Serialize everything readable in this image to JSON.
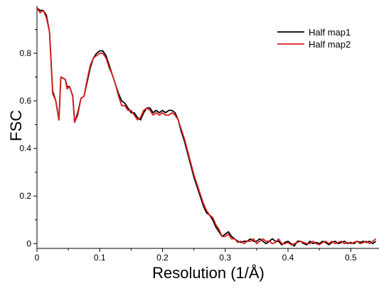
{
  "chart_data": {
    "type": "line",
    "xlabel": "Resolution (1/Å)",
    "ylabel": "FSC",
    "xlim": [
      0,
      0.545
    ],
    "ylim": [
      -0.02,
      1.0
    ],
    "x_ticks": [
      0,
      0.1,
      0.2,
      0.3,
      0.4,
      0.5
    ],
    "x_tick_labels": [
      "0",
      "0.1",
      "0.2",
      "0.3",
      "0.4",
      "0.5"
    ],
    "y_ticks": [
      0,
      0.2,
      0.4,
      0.6,
      0.8
    ],
    "y_tick_labels": [
      "0",
      "0.2",
      "0.4",
      "0.6",
      "0.8"
    ],
    "grid": false,
    "legend_position": "top-right",
    "series": [
      {
        "name": "Half map1",
        "color": "#000000",
        "points": [
          [
            0,
            0.99
          ],
          [
            0.005,
            0.98
          ],
          [
            0.01,
            0.98
          ],
          [
            0.015,
            0.96
          ],
          [
            0.02,
            0.89
          ],
          [
            0.025,
            0.64
          ],
          [
            0.03,
            0.6
          ],
          [
            0.035,
            0.52
          ],
          [
            0.038,
            0.7
          ],
          [
            0.045,
            0.69
          ],
          [
            0.048,
            0.66
          ],
          [
            0.052,
            0.66
          ],
          [
            0.057,
            0.62
          ],
          [
            0.06,
            0.51
          ],
          [
            0.065,
            0.55
          ],
          [
            0.07,
            0.61
          ],
          [
            0.075,
            0.62
          ],
          [
            0.08,
            0.68
          ],
          [
            0.085,
            0.74
          ],
          [
            0.09,
            0.78
          ],
          [
            0.095,
            0.8
          ],
          [
            0.1,
            0.81
          ],
          [
            0.105,
            0.81
          ],
          [
            0.11,
            0.79
          ],
          [
            0.115,
            0.75
          ],
          [
            0.12,
            0.71
          ],
          [
            0.125,
            0.67
          ],
          [
            0.13,
            0.63
          ],
          [
            0.135,
            0.6
          ],
          [
            0.14,
            0.59
          ],
          [
            0.145,
            0.57
          ],
          [
            0.15,
            0.55
          ],
          [
            0.155,
            0.55
          ],
          [
            0.16,
            0.53
          ],
          [
            0.165,
            0.52
          ],
          [
            0.17,
            0.55
          ],
          [
            0.175,
            0.57
          ],
          [
            0.18,
            0.57
          ],
          [
            0.185,
            0.55
          ],
          [
            0.19,
            0.56
          ],
          [
            0.195,
            0.55
          ],
          [
            0.2,
            0.56
          ],
          [
            0.205,
            0.55
          ],
          [
            0.21,
            0.56
          ],
          [
            0.215,
            0.56
          ],
          [
            0.22,
            0.55
          ],
          [
            0.225,
            0.52
          ],
          [
            0.23,
            0.47
          ],
          [
            0.235,
            0.43
          ],
          [
            0.24,
            0.38
          ],
          [
            0.245,
            0.33
          ],
          [
            0.25,
            0.28
          ],
          [
            0.255,
            0.24
          ],
          [
            0.26,
            0.2
          ],
          [
            0.265,
            0.16
          ],
          [
            0.27,
            0.13
          ],
          [
            0.275,
            0.12
          ],
          [
            0.28,
            0.1
          ],
          [
            0.285,
            0.07
          ],
          [
            0.29,
            0.05
          ],
          [
            0.295,
            0.03
          ],
          [
            0.3,
            0.04
          ],
          [
            0.305,
            0.05
          ],
          [
            0.31,
            0.03
          ],
          [
            0.315,
            0.02
          ],
          [
            0.32,
            0.01
          ],
          [
            0.325,
            0.005
          ],
          [
            0.33,
            0.01
          ],
          [
            0.335,
            0.01
          ],
          [
            0.34,
            0.02
          ],
          [
            0.345,
            0.01
          ],
          [
            0.35,
            0.01
          ],
          [
            0.355,
            0.02
          ],
          [
            0.36,
            0.01
          ],
          [
            0.365,
            0.0
          ],
          [
            0.37,
            0.01
          ],
          [
            0.375,
            0.02
          ],
          [
            0.38,
            0.01
          ],
          [
            0.385,
            0.01
          ],
          [
            0.39,
            -0.005
          ],
          [
            0.395,
            0.005
          ],
          [
            0.4,
            0.01
          ],
          [
            0.405,
            0.0
          ],
          [
            0.41,
            -0.01
          ],
          [
            0.415,
            0.01
          ],
          [
            0.42,
            0.01
          ],
          [
            0.425,
            0.0
          ],
          [
            0.43,
            -0.005
          ],
          [
            0.435,
            0.01
          ],
          [
            0.44,
            0.0
          ],
          [
            0.445,
            0.005
          ],
          [
            0.45,
            0.0
          ],
          [
            0.455,
            0.01
          ],
          [
            0.46,
            0.005
          ],
          [
            0.465,
            -0.005
          ],
          [
            0.47,
            0.005
          ],
          [
            0.475,
            0.01
          ],
          [
            0.48,
            0.0
          ],
          [
            0.485,
            0.005
          ],
          [
            0.49,
            0.01
          ],
          [
            0.495,
            0.0
          ],
          [
            0.5,
            0.005
          ],
          [
            0.505,
            0.0
          ],
          [
            0.51,
            0.01
          ],
          [
            0.515,
            0.005
          ],
          [
            0.52,
            0.01
          ],
          [
            0.525,
            0.005
          ],
          [
            0.53,
            0.01
          ],
          [
            0.535,
            0.0
          ],
          [
            0.54,
            0.01
          ]
        ]
      },
      {
        "name": "Half map2",
        "color": "#d81e1e",
        "points": [
          [
            0,
            0.99
          ],
          [
            0.005,
            0.97
          ],
          [
            0.01,
            0.98
          ],
          [
            0.015,
            0.95
          ],
          [
            0.02,
            0.89
          ],
          [
            0.025,
            0.63
          ],
          [
            0.03,
            0.6
          ],
          [
            0.035,
            0.52
          ],
          [
            0.038,
            0.7
          ],
          [
            0.045,
            0.69
          ],
          [
            0.048,
            0.65
          ],
          [
            0.052,
            0.66
          ],
          [
            0.057,
            0.62
          ],
          [
            0.06,
            0.51
          ],
          [
            0.065,
            0.54
          ],
          [
            0.07,
            0.61
          ],
          [
            0.075,
            0.62
          ],
          [
            0.08,
            0.69
          ],
          [
            0.085,
            0.75
          ],
          [
            0.09,
            0.78
          ],
          [
            0.095,
            0.79
          ],
          [
            0.1,
            0.8
          ],
          [
            0.105,
            0.8
          ],
          [
            0.11,
            0.78
          ],
          [
            0.115,
            0.74
          ],
          [
            0.12,
            0.71
          ],
          [
            0.125,
            0.67
          ],
          [
            0.13,
            0.62
          ],
          [
            0.135,
            0.58
          ],
          [
            0.14,
            0.58
          ],
          [
            0.145,
            0.56
          ],
          [
            0.15,
            0.56
          ],
          [
            0.155,
            0.54
          ],
          [
            0.16,
            0.52
          ],
          [
            0.165,
            0.53
          ],
          [
            0.17,
            0.56
          ],
          [
            0.175,
            0.57
          ],
          [
            0.18,
            0.56
          ],
          [
            0.185,
            0.54
          ],
          [
            0.19,
            0.55
          ],
          [
            0.195,
            0.54
          ],
          [
            0.2,
            0.55
          ],
          [
            0.205,
            0.54
          ],
          [
            0.21,
            0.54
          ],
          [
            0.215,
            0.55
          ],
          [
            0.22,
            0.54
          ],
          [
            0.225,
            0.52
          ],
          [
            0.23,
            0.48
          ],
          [
            0.235,
            0.44
          ],
          [
            0.24,
            0.39
          ],
          [
            0.245,
            0.34
          ],
          [
            0.25,
            0.29
          ],
          [
            0.255,
            0.25
          ],
          [
            0.26,
            0.21
          ],
          [
            0.265,
            0.17
          ],
          [
            0.27,
            0.14
          ],
          [
            0.275,
            0.12
          ],
          [
            0.28,
            0.11
          ],
          [
            0.285,
            0.08
          ],
          [
            0.29,
            0.06
          ],
          [
            0.295,
            0.03
          ],
          [
            0.3,
            0.03
          ],
          [
            0.305,
            0.04
          ],
          [
            0.31,
            0.02
          ],
          [
            0.315,
            0.02
          ],
          [
            0.32,
            0.005
          ],
          [
            0.325,
            0.01
          ],
          [
            0.33,
            0.0
          ],
          [
            0.335,
            0.01
          ],
          [
            0.34,
            0.01
          ],
          [
            0.345,
            0.02
          ],
          [
            0.35,
            0.0
          ],
          [
            0.355,
            0.01
          ],
          [
            0.36,
            0.02
          ],
          [
            0.365,
            0.01
          ],
          [
            0.37,
            0.01
          ],
          [
            0.375,
            0.0
          ],
          [
            0.38,
            0.005
          ],
          [
            0.385,
            0.02
          ],
          [
            0.39,
            0.0
          ],
          [
            0.395,
            0.0
          ],
          [
            0.4,
            0.005
          ],
          [
            0.405,
            -0.005
          ],
          [
            0.41,
            0.0
          ],
          [
            0.415,
            0.005
          ],
          [
            0.42,
            0.01
          ],
          [
            0.425,
            0.005
          ],
          [
            0.43,
            0.0
          ],
          [
            0.435,
            0.0
          ],
          [
            0.44,
            0.01
          ],
          [
            0.445,
            0.0
          ],
          [
            0.45,
            -0.005
          ],
          [
            0.455,
            0.005
          ],
          [
            0.46,
            0.01
          ],
          [
            0.465,
            0.0
          ],
          [
            0.47,
            0.01
          ],
          [
            0.475,
            0.0
          ],
          [
            0.48,
            0.005
          ],
          [
            0.485,
            0.01
          ],
          [
            0.49,
            0.0
          ],
          [
            0.495,
            0.005
          ],
          [
            0.5,
            0.0
          ],
          [
            0.505,
            0.005
          ],
          [
            0.51,
            0.01
          ],
          [
            0.515,
            0.0
          ],
          [
            0.52,
            0.005
          ],
          [
            0.525,
            0.01
          ],
          [
            0.53,
            0.0
          ],
          [
            0.535,
            0.01
          ],
          [
            0.54,
            0.02
          ]
        ]
      }
    ]
  }
}
